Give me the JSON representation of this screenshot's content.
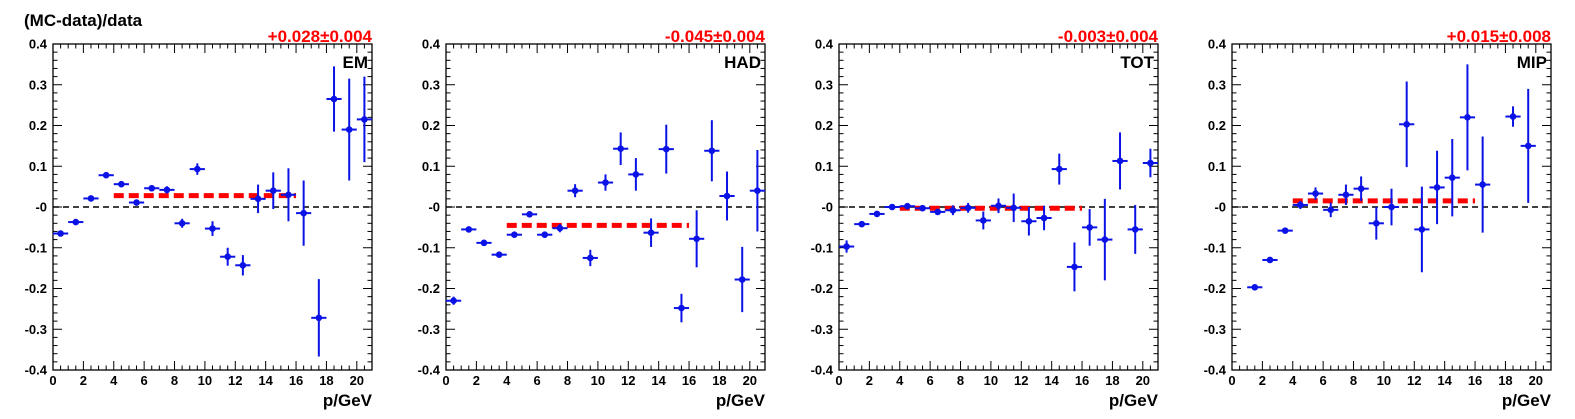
{
  "figure": {
    "ylabel": "(MC-data)/data"
  },
  "colors": {
    "points": "#0a12e6",
    "fit": "#ff0000",
    "reference": "#000000",
    "fit_label": "#ff0000"
  },
  "chart_data": [
    {
      "type": "scatter",
      "panel_label": "EM",
      "fit_label": "+0.028±0.004",
      "fit": {
        "value": 0.028,
        "x_range": [
          4,
          16
        ]
      },
      "xlabel": "p/GeV",
      "xlim": [
        0,
        21
      ],
      "ylim": [
        -0.4,
        0.4
      ],
      "xticks": [
        0,
        2,
        4,
        6,
        8,
        10,
        12,
        14,
        16,
        18,
        20
      ],
      "yticks": [
        -0.4,
        -0.3,
        -0.2,
        -0.1,
        0,
        0.1,
        0.2,
        0.3,
        0.4
      ],
      "ytick_labels": [
        "-0.4",
        "-0.3",
        "-0.2",
        "-0.1",
        "-0",
        "0.1",
        "0.2",
        "0.3",
        "0.4"
      ],
      "reference_line": 0,
      "points": [
        {
          "x": 0.5,
          "y": -0.065,
          "err": 0.003
        },
        {
          "x": 1.5,
          "y": -0.037,
          "err": 0.003
        },
        {
          "x": 2.5,
          "y": 0.021,
          "err": 0.003
        },
        {
          "x": 3.5,
          "y": 0.078,
          "err": 0.004
        },
        {
          "x": 4.5,
          "y": 0.056,
          "err": 0.005
        },
        {
          "x": 5.5,
          "y": 0.011,
          "err": 0.006
        },
        {
          "x": 6.5,
          "y": 0.046,
          "err": 0.007
        },
        {
          "x": 7.5,
          "y": 0.042,
          "err": 0.009
        },
        {
          "x": 8.5,
          "y": -0.04,
          "err": 0.011
        },
        {
          "x": 9.5,
          "y": 0.093,
          "err": 0.014
        },
        {
          "x": 10.5,
          "y": -0.053,
          "err": 0.018
        },
        {
          "x": 11.5,
          "y": -0.122,
          "err": 0.022
        },
        {
          "x": 12.5,
          "y": -0.143,
          "err": 0.025
        },
        {
          "x": 13.5,
          "y": 0.02,
          "err": 0.035
        },
        {
          "x": 14.5,
          "y": 0.04,
          "err": 0.045
        },
        {
          "x": 15.5,
          "y": 0.03,
          "err": 0.065
        },
        {
          "x": 16.5,
          "y": -0.015,
          "err": 0.08
        },
        {
          "x": 17.5,
          "y": -0.272,
          "err": 0.095
        },
        {
          "x": 18.5,
          "y": 0.265,
          "err": 0.08
        },
        {
          "x": 19.5,
          "y": 0.19,
          "err": 0.125
        },
        {
          "x": 20.5,
          "y": 0.215,
          "err": 0.105
        }
      ]
    },
    {
      "type": "scatter",
      "panel_label": "HAD",
      "fit_label": "-0.045±0.004",
      "fit": {
        "value": -0.045,
        "x_range": [
          4,
          16
        ]
      },
      "xlabel": "p/GeV",
      "xlim": [
        0,
        21
      ],
      "ylim": [
        -0.4,
        0.4
      ],
      "xticks": [
        0,
        2,
        4,
        6,
        8,
        10,
        12,
        14,
        16,
        18,
        20
      ],
      "yticks": [
        -0.4,
        -0.3,
        -0.2,
        -0.1,
        0,
        0.1,
        0.2,
        0.3,
        0.4
      ],
      "ytick_labels": [
        "-0.4",
        "-0.3",
        "-0.2",
        "-0.1",
        "-0",
        "0.1",
        "0.2",
        "0.3",
        "0.4"
      ],
      "reference_line": 0,
      "points": [
        {
          "x": 0.5,
          "y": -0.23,
          "err": 0.01
        },
        {
          "x": 1.5,
          "y": -0.055,
          "err": 0.004
        },
        {
          "x": 2.5,
          "y": -0.088,
          "err": 0.004
        },
        {
          "x": 3.5,
          "y": -0.117,
          "err": 0.004
        },
        {
          "x": 4.5,
          "y": -0.068,
          "err": 0.005
        },
        {
          "x": 5.5,
          "y": -0.018,
          "err": 0.006
        },
        {
          "x": 6.5,
          "y": -0.068,
          "err": 0.008
        },
        {
          "x": 7.5,
          "y": -0.052,
          "err": 0.01
        },
        {
          "x": 8.5,
          "y": 0.04,
          "err": 0.016
        },
        {
          "x": 9.5,
          "y": -0.125,
          "err": 0.02
        },
        {
          "x": 10.5,
          "y": 0.06,
          "err": 0.02
        },
        {
          "x": 11.5,
          "y": 0.143,
          "err": 0.04
        },
        {
          "x": 12.5,
          "y": 0.08,
          "err": 0.04
        },
        {
          "x": 13.5,
          "y": -0.063,
          "err": 0.035
        },
        {
          "x": 14.5,
          "y": 0.142,
          "err": 0.06
        },
        {
          "x": 15.5,
          "y": -0.248,
          "err": 0.035
        },
        {
          "x": 16.5,
          "y": -0.078,
          "err": 0.07
        },
        {
          "x": 17.5,
          "y": 0.138,
          "err": 0.075
        },
        {
          "x": 18.5,
          "y": 0.027,
          "err": 0.06
        },
        {
          "x": 19.5,
          "y": -0.178,
          "err": 0.08
        },
        {
          "x": 20.5,
          "y": 0.04,
          "err": 0.1
        }
      ]
    },
    {
      "type": "scatter",
      "panel_label": "TOT",
      "fit_label": "-0.003±0.004",
      "fit": {
        "value": -0.003,
        "x_range": [
          4,
          16
        ]
      },
      "xlabel": "p/GeV",
      "xlim": [
        0,
        21
      ],
      "ylim": [
        -0.4,
        0.4
      ],
      "xticks": [
        0,
        2,
        4,
        6,
        8,
        10,
        12,
        14,
        16,
        18,
        20
      ],
      "yticks": [
        -0.4,
        -0.3,
        -0.2,
        -0.1,
        0,
        0.1,
        0.2,
        0.3,
        0.4
      ],
      "ytick_labels": [
        "-0.4",
        "-0.3",
        "-0.2",
        "-0.1",
        "-0",
        "0.1",
        "0.2",
        "0.3",
        "0.4"
      ],
      "reference_line": 0,
      "points": [
        {
          "x": 0.5,
          "y": -0.097,
          "err": 0.015
        },
        {
          "x": 1.5,
          "y": -0.042,
          "err": 0.006
        },
        {
          "x": 2.5,
          "y": -0.017,
          "err": 0.005
        },
        {
          "x": 3.5,
          "y": 0.0,
          "err": 0.004
        },
        {
          "x": 4.5,
          "y": 0.002,
          "err": 0.004
        },
        {
          "x": 5.5,
          "y": -0.003,
          "err": 0.005
        },
        {
          "x": 6.5,
          "y": -0.012,
          "err": 0.007
        },
        {
          "x": 7.5,
          "y": -0.008,
          "err": 0.012
        },
        {
          "x": 8.5,
          "y": -0.002,
          "err": 0.012
        },
        {
          "x": 9.5,
          "y": -0.033,
          "err": 0.022
        },
        {
          "x": 10.5,
          "y": 0.003,
          "err": 0.018
        },
        {
          "x": 11.5,
          "y": -0.002,
          "err": 0.035
        },
        {
          "x": 12.5,
          "y": -0.035,
          "err": 0.035
        },
        {
          "x": 13.5,
          "y": -0.027,
          "err": 0.03
        },
        {
          "x": 14.5,
          "y": 0.093,
          "err": 0.038
        },
        {
          "x": 15.5,
          "y": -0.147,
          "err": 0.06
        },
        {
          "x": 16.5,
          "y": -0.05,
          "err": 0.045
        },
        {
          "x": 17.5,
          "y": -0.08,
          "err": 0.1
        },
        {
          "x": 18.5,
          "y": 0.113,
          "err": 0.07
        },
        {
          "x": 19.5,
          "y": -0.055,
          "err": 0.06
        },
        {
          "x": 20.5,
          "y": 0.108,
          "err": 0.035
        }
      ]
    },
    {
      "type": "scatter",
      "panel_label": "MIP",
      "fit_label": "+0.015±0.008",
      "fit": {
        "value": 0.015,
        "x_range": [
          4,
          16
        ]
      },
      "xlabel": "p/GeV",
      "xlim": [
        0,
        21
      ],
      "ylim": [
        -0.4,
        0.4
      ],
      "xticks": [
        0,
        2,
        4,
        6,
        8,
        10,
        12,
        14,
        16,
        18,
        20
      ],
      "yticks": [
        -0.4,
        -0.3,
        -0.2,
        -0.1,
        0,
        0.1,
        0.2,
        0.3,
        0.4
      ],
      "ytick_labels": [
        "-0.4",
        "-0.3",
        "-0.2",
        "-0.1",
        "-0",
        "0.1",
        "0.2",
        "0.3",
        "0.4"
      ],
      "reference_line": 0,
      "points": [
        {
          "x": 1.5,
          "y": -0.197,
          "err": 0.005
        },
        {
          "x": 2.5,
          "y": -0.13,
          "err": 0.006
        },
        {
          "x": 3.5,
          "y": -0.058,
          "err": 0.006
        },
        {
          "x": 4.5,
          "y": 0.005,
          "err": 0.01
        },
        {
          "x": 5.5,
          "y": 0.033,
          "err": 0.015
        },
        {
          "x": 6.5,
          "y": -0.007,
          "err": 0.018
        },
        {
          "x": 7.5,
          "y": 0.03,
          "err": 0.025
        },
        {
          "x": 8.5,
          "y": 0.045,
          "err": 0.03
        },
        {
          "x": 9.5,
          "y": -0.04,
          "err": 0.04
        },
        {
          "x": 10.5,
          "y": 0.0,
          "err": 0.045
        },
        {
          "x": 11.5,
          "y": 0.203,
          "err": 0.105
        },
        {
          "x": 12.5,
          "y": -0.055,
          "err": 0.105
        },
        {
          "x": 13.5,
          "y": 0.048,
          "err": 0.09
        },
        {
          "x": 14.5,
          "y": 0.072,
          "err": 0.095
        },
        {
          "x": 15.5,
          "y": 0.22,
          "err": 0.13
        },
        {
          "x": 16.5,
          "y": 0.055,
          "err": 0.118
        },
        {
          "x": 18.5,
          "y": 0.222,
          "err": 0.025
        },
        {
          "x": 19.5,
          "y": 0.15,
          "err": 0.14
        }
      ]
    }
  ]
}
